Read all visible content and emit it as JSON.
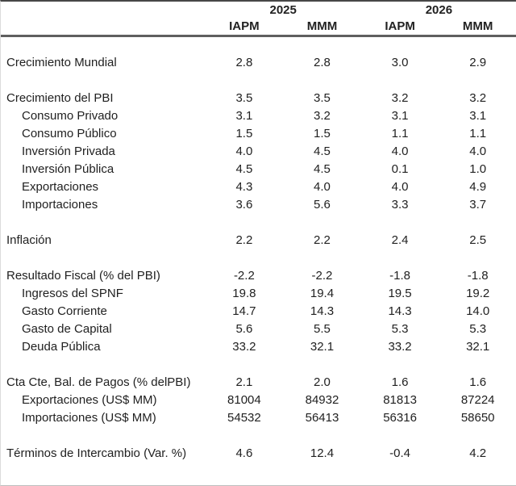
{
  "colors": {
    "top_border": "#474747",
    "header_rule": "#5f5f5f",
    "bottom_border": "#bdbdbd",
    "left_border": "#dcdcdc",
    "text": "#212121",
    "background": "#ffffff"
  },
  "header": {
    "year_2025": "2025",
    "year_2026": "2026",
    "scenarios": [
      "IAPM",
      "MMM",
      "IAPM",
      "MMM"
    ]
  },
  "rows": [
    {
      "type": "spacer"
    },
    {
      "type": "data",
      "label": "Crecimiento Mundial",
      "indent": false,
      "values": [
        "2.8",
        "2.8",
        "3.0",
        "2.9"
      ]
    },
    {
      "type": "spacer"
    },
    {
      "type": "data",
      "label": "Crecimiento del PBI",
      "indent": false,
      "values": [
        "3.5",
        "3.5",
        "3.2",
        "3.2"
      ]
    },
    {
      "type": "data",
      "label": "Consumo Privado",
      "indent": true,
      "values": [
        "3.1",
        "3.2",
        "3.1",
        "3.1"
      ]
    },
    {
      "type": "data",
      "label": "Consumo Público",
      "indent": true,
      "values": [
        "1.5",
        "1.5",
        "1.1",
        "1.1"
      ]
    },
    {
      "type": "data",
      "label": "Inversión Privada",
      "indent": true,
      "values": [
        "4.0",
        "4.5",
        "4.0",
        "4.0"
      ]
    },
    {
      "type": "data",
      "label": "Inversión Pública",
      "indent": true,
      "values": [
        "4.5",
        "4.5",
        "0.1",
        "1.0"
      ]
    },
    {
      "type": "data",
      "label": "Exportaciones",
      "indent": true,
      "values": [
        "4.3",
        "4.0",
        "4.0",
        "4.9"
      ]
    },
    {
      "type": "data",
      "label": "Importaciones",
      "indent": true,
      "values": [
        "3.6",
        "5.6",
        "3.3",
        "3.7"
      ]
    },
    {
      "type": "spacer"
    },
    {
      "type": "data",
      "label": "Inflación",
      "indent": false,
      "values": [
        "2.2",
        "2.2",
        "2.4",
        "2.5"
      ]
    },
    {
      "type": "spacer"
    },
    {
      "type": "data",
      "label": "Resultado Fiscal (% del PBI)",
      "indent": false,
      "values": [
        "-2.2",
        "-2.2",
        "-1.8",
        "-1.8"
      ]
    },
    {
      "type": "data",
      "label": "Ingresos del SPNF",
      "indent": true,
      "values": [
        "19.8",
        "19.4",
        "19.5",
        "19.2"
      ]
    },
    {
      "type": "data",
      "label": "Gasto Corriente",
      "indent": true,
      "values": [
        "14.7",
        "14.3",
        "14.3",
        "14.0"
      ]
    },
    {
      "type": "data",
      "label": "Gasto de Capital",
      "indent": true,
      "values": [
        "5.6",
        "5.5",
        "5.3",
        "5.3"
      ]
    },
    {
      "type": "data",
      "label": "Deuda Pública",
      "indent": true,
      "values": [
        "33.2",
        "32.1",
        "33.2",
        "32.1"
      ]
    },
    {
      "type": "spacer"
    },
    {
      "type": "data",
      "label": "Cta Cte, Bal. de Pagos (% delPBI)",
      "indent": false,
      "values": [
        "2.1",
        "2.0",
        "1.6",
        "1.6"
      ]
    },
    {
      "type": "data",
      "label": "Exportaciones (US$ MM)",
      "indent": true,
      "values": [
        "81004",
        "84932",
        "81813",
        "87224"
      ]
    },
    {
      "type": "data",
      "label": "Importaciones (US$ MM)",
      "indent": true,
      "values": [
        "54532",
        "56413",
        "56316",
        "58650"
      ]
    },
    {
      "type": "spacer"
    },
    {
      "type": "data",
      "label": "Términos de Intercambio (Var. %)",
      "indent": false,
      "values": [
        "4.6",
        "12.4",
        "-0.4",
        "4.2"
      ]
    }
  ]
}
